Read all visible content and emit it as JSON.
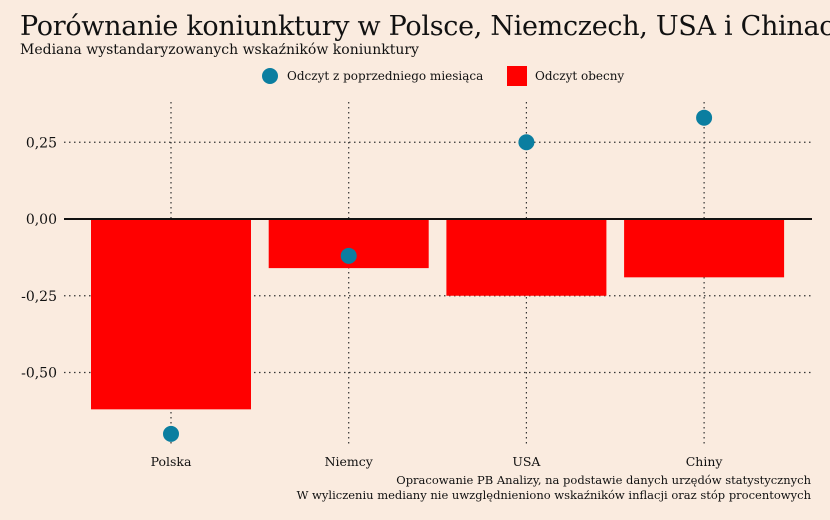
{
  "colors": {
    "background": "#faebdf",
    "bar": "#ff0000",
    "dot": "#0b7ea0",
    "grid": "#333333",
    "zero_line": "#111111",
    "text": "#111111"
  },
  "chart_data": {
    "type": "bar",
    "title": "Porównanie koniunktury w Polsce, Niemczech, USA i Chinach",
    "subtitle": "Mediana wystandaryzowanych wskaźników koniunktury",
    "xlabel": "",
    "ylabel": "",
    "categories": [
      "Polska",
      "Niemcy",
      "USA",
      "Chiny"
    ],
    "ylim": [
      -0.72,
      0.38
    ],
    "yticks": [
      0.25,
      0.0,
      -0.25,
      -0.5
    ],
    "ytick_labels": [
      "0,25",
      "0,00",
      "-0,25",
      "-0,50"
    ],
    "grid": true,
    "legend_position": "top-center",
    "series": [
      {
        "name": "Odczyt z poprzedniego miesiąca",
        "kind": "point",
        "values": [
          -0.7,
          -0.12,
          0.25,
          0.33
        ]
      },
      {
        "name": "Odczyt obecny",
        "kind": "bar",
        "values": [
          -0.62,
          -0.16,
          -0.25,
          -0.19
        ]
      }
    ],
    "notes": [
      "Opracowanie PB Analizy, na podstawie danych urzędów statystycznych",
      "W wyliczeniu mediany nie uwzględnieniono wskaźników inflacji oraz stóp procentowych"
    ]
  }
}
